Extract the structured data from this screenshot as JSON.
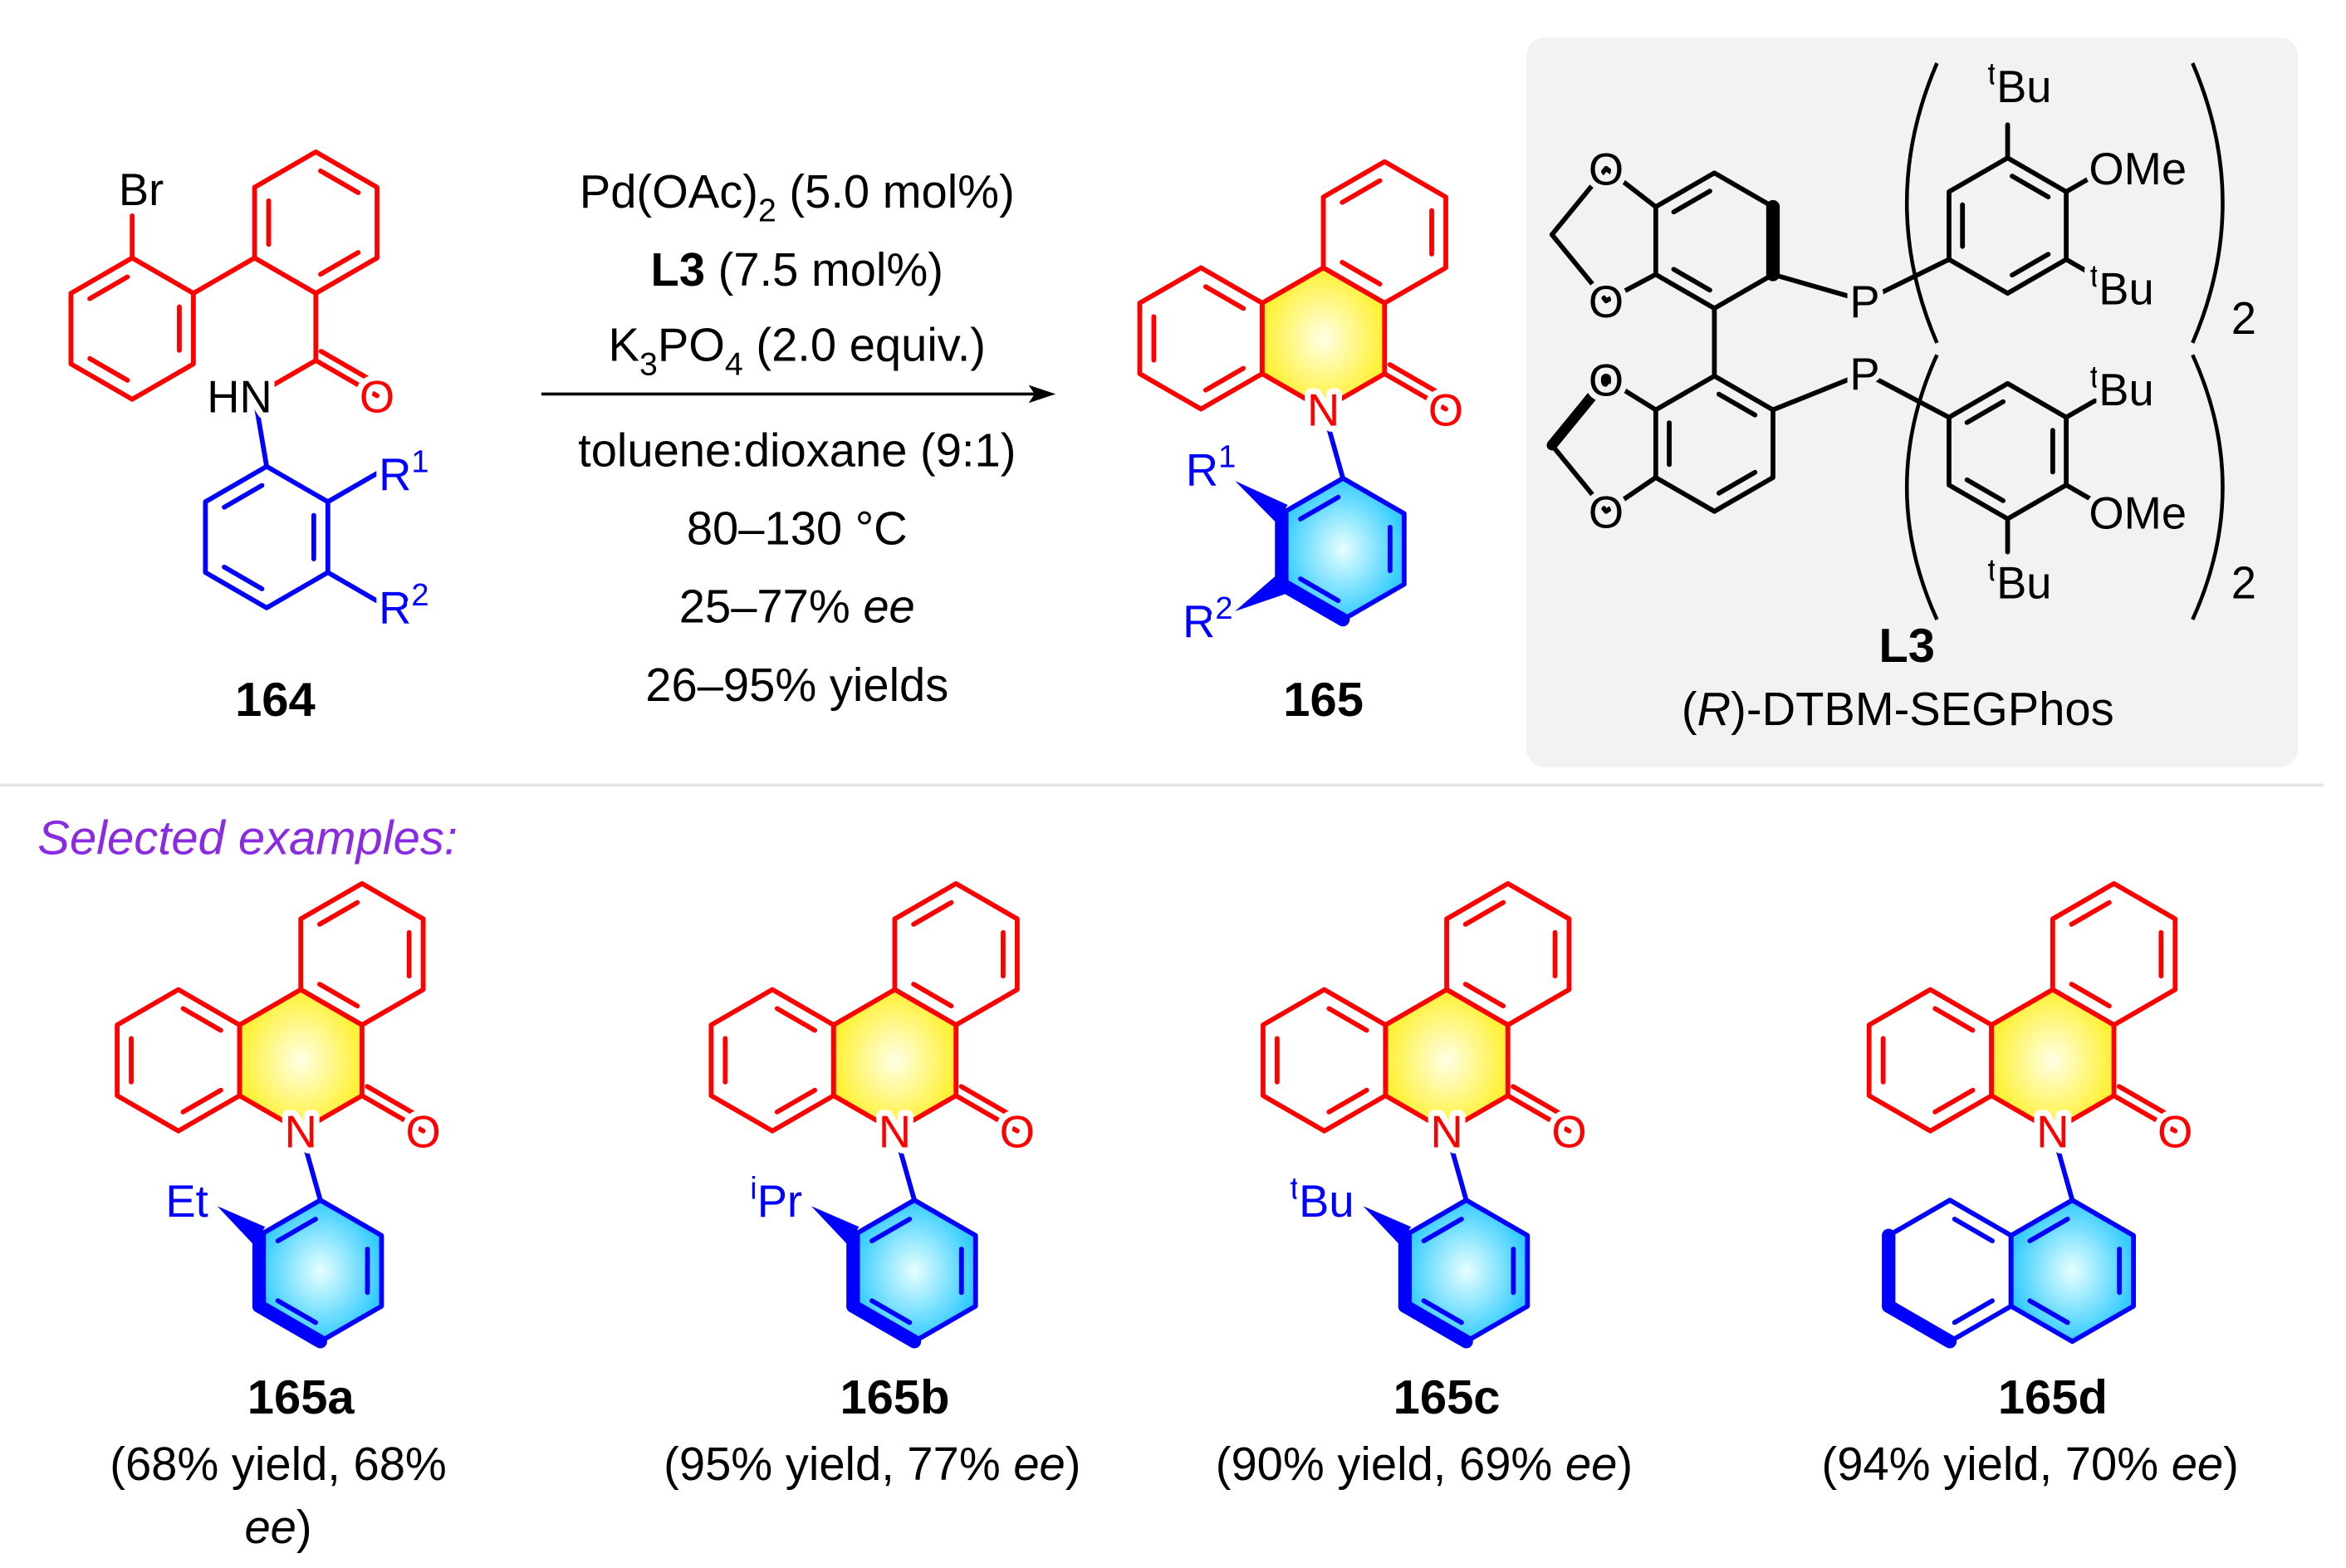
{
  "substrate": {
    "bromine": "Br",
    "amine": "HN",
    "oxygen": "O",
    "r1": {
      "group": "R",
      "index": "1"
    },
    "r2": {
      "group": "R",
      "index": "2"
    },
    "label": "164"
  },
  "conditions": {
    "above": [
      [
        "Pd(OAc)",
        "2",
        " (5.0 mol%)"
      ],
      [
        "L3",
        " (7.5 mol%)"
      ],
      [
        "K",
        "3",
        "PO",
        "4",
        " (2.0 equiv.)"
      ]
    ],
    "below": [
      [
        "toluene:dioxane (9:1)"
      ],
      [
        "80–130 °C"
      ],
      [
        "25–77% ",
        "ee"
      ],
      [
        "26–95% yields"
      ]
    ]
  },
  "product": {
    "nitrogen": "N",
    "oxygen": "O",
    "r1": {
      "group": "R",
      "index": "1"
    },
    "r2": {
      "group": "R",
      "index": "2"
    },
    "label": "165"
  },
  "ligand": {
    "atoms": [
      "O",
      "O",
      "O",
      "O",
      "P",
      "P"
    ],
    "tbu": [
      {
        "prefix": "t",
        "group": "Bu"
      },
      {
        "prefix": "t",
        "group": "Bu"
      },
      {
        "prefix": "t",
        "group": "Bu"
      },
      {
        "prefix": "t",
        "group": "Bu"
      }
    ],
    "ome": [
      "OMe",
      "OMe"
    ],
    "counts": [
      "2",
      "2"
    ],
    "label": "L3",
    "name": [
      "(",
      "R",
      ")-DTBM-SEGPhos"
    ]
  },
  "examples_heading": "Selected examples:",
  "examples": [
    {
      "nitrogen": "N",
      "oxygen": "O",
      "substituent": {
        "group": "Et"
      },
      "label": "165a",
      "yield_text": "(68% yield, 68%",
      "ee": "ee",
      "close": ")"
    },
    {
      "nitrogen": "N",
      "oxygen": "O",
      "substituent": {
        "prefix": "i",
        "group": "Pr"
      },
      "label": "165b",
      "yield_text": "(95% yield, 77% ",
      "ee": "ee",
      "close": ")"
    },
    {
      "nitrogen": "N",
      "oxygen": "O",
      "substituent": {
        "prefix": "t",
        "group": "Bu"
      },
      "label": "165c",
      "yield_text": "(90% yield, 69% ",
      "ee": "ee",
      "close": ")"
    },
    {
      "nitrogen": "N",
      "oxygen": "O",
      "label": "165d",
      "yield_text": "(94% yield, 70% ",
      "ee": "ee",
      "close": ")"
    }
  ]
}
